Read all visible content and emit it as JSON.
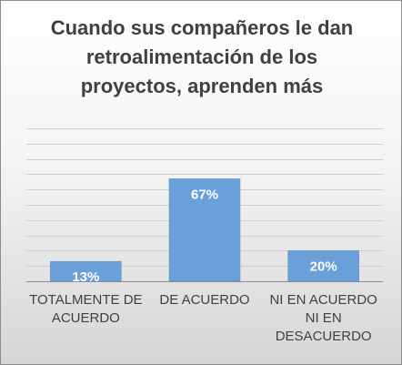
{
  "chart_data": {
    "type": "bar",
    "title": "Cuando sus compañeros le dan\nretroalimentación de los\nproyectos, aprenden más",
    "categories": [
      "TOTALMENTE DE\nACUERDO",
      "DE ACUERDO",
      "NI EN ACUERDO\nNI EN\nDESACUERDO"
    ],
    "values": [
      13,
      67,
      20
    ],
    "data_labels": [
      "13%",
      "67%",
      "20%"
    ],
    "ylim": [
      0,
      100
    ],
    "grid": true,
    "bar_color": "#6a9fd8",
    "label_color": "#ffffff"
  }
}
